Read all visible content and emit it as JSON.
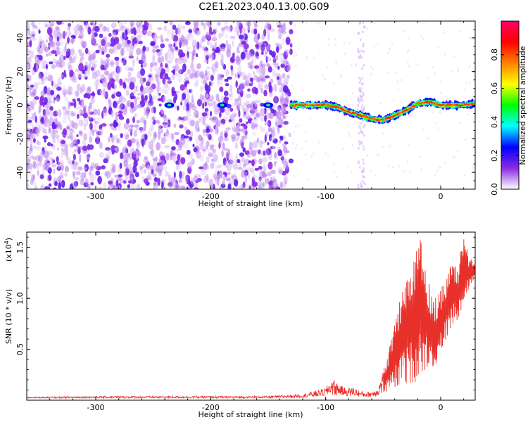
{
  "title": "C2E1.2023.040.13.00.G09",
  "chart_data": [
    {
      "type": "heatmap",
      "xlabel": "Height of straight line (km)",
      "ylabel": "Frequency (Hz)",
      "xlim": [
        -360,
        30
      ],
      "ylim": [
        -50,
        50
      ],
      "xticks": [
        -300,
        -200,
        -100,
        0
      ],
      "xtick_labels": [
        "-300",
        "-200",
        "-100",
        "0"
      ],
      "yticks": [
        -40,
        -20,
        0,
        20,
        40
      ],
      "ytick_labels": [
        "-40",
        "-20",
        "0",
        "20",
        "40"
      ],
      "colorbar": {
        "label": "Normalized spectral amplitude",
        "range": [
          0,
          1
        ],
        "ticks": [
          0.0,
          0.2,
          0.4,
          0.6,
          0.8
        ],
        "tick_labels": [
          "0.0",
          "0.2",
          "0.4",
          "0.6",
          "0.8"
        ],
        "colormap": [
          "#ffffff",
          "#8a2be2",
          "#0000ff",
          "#00ffff",
          "#00ff00",
          "#ffff00",
          "#ff8000",
          "#ff0000",
          "#ff0066"
        ]
      },
      "ridge": {
        "x": [
          -130,
          -120,
          -110,
          -100,
          -90,
          -80,
          -70,
          -60,
          -50,
          -40,
          -30,
          -20,
          -10,
          0,
          10,
          20,
          30
        ],
        "y": [
          0,
          0,
          0,
          0,
          -1,
          -4,
          -6,
          -8,
          -9,
          -6,
          -3,
          1,
          2,
          0,
          0,
          0,
          1
        ]
      },
      "spots": [
        {
          "x": -236,
          "y": 0
        },
        {
          "x": -190,
          "y": 0
        },
        {
          "x": -150,
          "y": 0
        }
      ],
      "grid": false
    },
    {
      "type": "line",
      "xlabel": "Height of straight line (km)",
      "ylabel": "SNR (10 * v/v)",
      "scale_label_base": "(x10",
      "scale_label_exp": "4",
      "scale_label_end": ")",
      "xlim": [
        -360,
        30
      ],
      "ylim": [
        0,
        16500
      ],
      "xticks": [
        -300,
        -200,
        -100,
        0
      ],
      "xtick_labels": [
        "-300",
        "-200",
        "-100",
        "0"
      ],
      "yticks": [
        5000,
        10000,
        15000
      ],
      "ytick_labels": [
        "0.5",
        "1.0",
        "1.5"
      ],
      "color": "#e8302a",
      "series_envelope": {
        "x": [
          -360,
          -300,
          -200,
          -150,
          -120,
          -110,
          -100,
          -95,
          -90,
          -85,
          -80,
          -75,
          -70,
          -65,
          -60,
          -55,
          -50,
          -45,
          -40,
          -35,
          -30,
          -25,
          -20,
          -15,
          -10,
          -5,
          0,
          5,
          10,
          15,
          20,
          25,
          30
        ],
        "low": [
          200,
          200,
          200,
          200,
          250,
          300,
          400,
          500,
          400,
          450,
          400,
          400,
          300,
          300,
          300,
          400,
          600,
          800,
          1000,
          1200,
          1500,
          1500,
          2000,
          2500,
          3500,
          3000,
          4500,
          6000,
          7000,
          8000,
          9500,
          11000,
          12000
        ],
        "high": [
          300,
          400,
          400,
          400,
          600,
          900,
          1200,
          2200,
          1800,
          1300,
          1200,
          1300,
          900,
          800,
          900,
          1200,
          3000,
          5000,
          7500,
          10500,
          12000,
          14000,
          16500,
          15000,
          11500,
          10000,
          11000,
          12000,
          14500,
          13000,
          16500,
          14000,
          13500
        ]
      },
      "grid": false
    }
  ]
}
